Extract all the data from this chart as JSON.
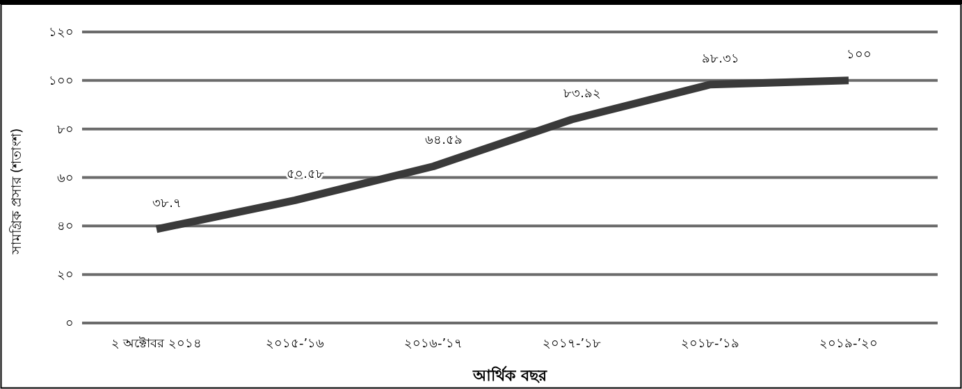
{
  "chart_data": {
    "type": "line",
    "xlabel": "আর্থিক বছর",
    "ylabel": "সামগ্রিক প্রসার (শতাংশ)",
    "categories": [
      "২ অক্টোবর ২০১৪",
      "২০১৫-’১৬",
      "২০১৬-’১৭",
      "২০১৭-’১৮",
      "২০১৮-’১৯",
      "২০১৯-’২০"
    ],
    "series": [
      {
        "color": "#3a3a3a",
        "values": [
          38.7,
          50.58,
          64.59,
          83.92,
          98.31,
          100
        ],
        "value_labels": [
          "৩৮.৭",
          "৫০.৫৮",
          "৬৪.৫৯",
          "৮৩.৯২",
          "৯৮.৩১",
          "১০০"
        ]
      }
    ],
    "ylim": [
      0,
      120
    ],
    "yticks": [
      {
        "value": 0,
        "label": "০"
      },
      {
        "value": 20,
        "label": "২০"
      },
      {
        "value": 40,
        "label": "৪০"
      },
      {
        "value": 60,
        "label": "৬০"
      },
      {
        "value": 80,
        "label": "৮০"
      },
      {
        "value": 100,
        "label": "১০০"
      },
      {
        "value": 120,
        "label": "১২০"
      }
    ],
    "grid": "y"
  }
}
